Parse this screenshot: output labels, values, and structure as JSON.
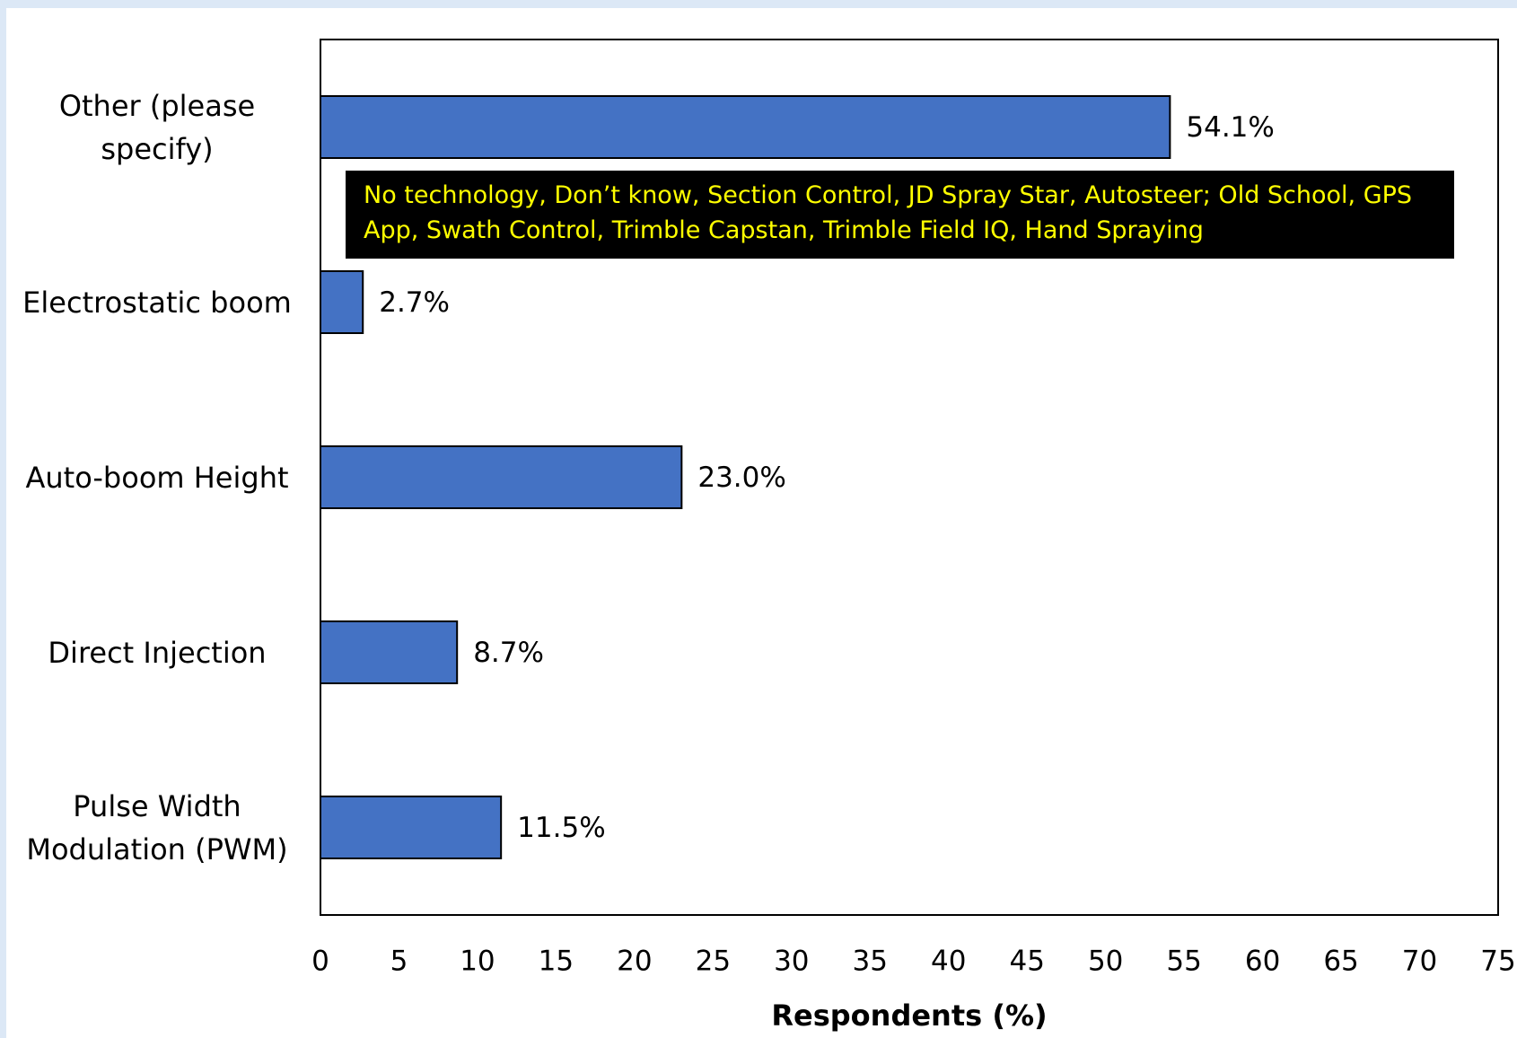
{
  "chart_data": {
    "type": "bar",
    "orientation": "horizontal",
    "categories": [
      "Other (please specify)",
      "Electrostatic boom",
      "Auto-boom Height",
      "Direct Injection",
      "Pulse Width Modulation (PWM)"
    ],
    "values": [
      54.1,
      2.7,
      23.0,
      8.7,
      11.5
    ],
    "value_labels": [
      "54.1%",
      "2.7%",
      "23.0%",
      "8.7%",
      "11.5%"
    ],
    "color": "#4472c4",
    "x_label": "Respondents (%)",
    "xlim": [
      0,
      75
    ],
    "xticks": [
      0,
      5,
      10,
      15,
      20,
      25,
      30,
      35,
      40,
      45,
      50,
      55,
      60,
      65,
      70,
      75
    ],
    "annotation": "No technology, Don’t know, Section Control, JD Spray Star, Autosteer; Old School, GPS App, Swath Control, Trimble Capstan, Trimble Field IQ, Hand Spraying"
  }
}
